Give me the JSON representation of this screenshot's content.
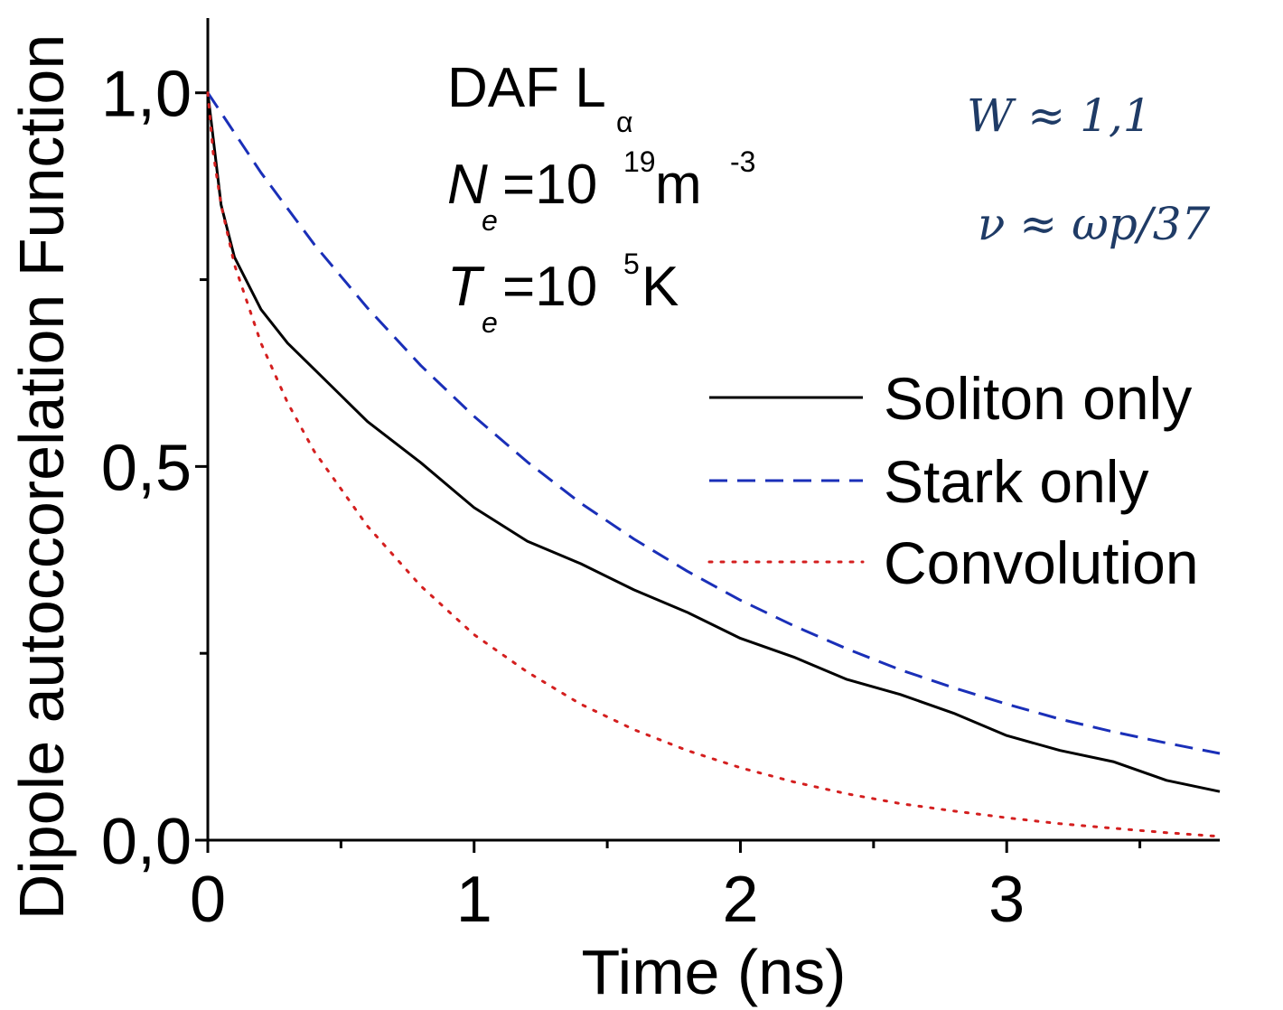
{
  "chart_data": {
    "type": "line",
    "xlabel": "Time (ns)",
    "ylabel": "Dipole autoccorelation Function",
    "xlim": [
      0,
      3.8
    ],
    "ylim": [
      0,
      1.1
    ],
    "x_ticks": [
      "0",
      "1",
      "2",
      "3"
    ],
    "y_ticks": [
      "0,0",
      "0,5",
      "1,0"
    ],
    "legend_position": "right",
    "annotations": {
      "line1": {
        "main": "DAF L",
        "sub": "α"
      },
      "line2": {
        "var": "N",
        "sub": "e",
        "eq": "=10",
        "sup": "19",
        "unit": " m",
        "unit_sup": "-3"
      },
      "line3": {
        "var": "T",
        "sub": "e",
        "eq": "=10",
        "sup": "5",
        "unit": " K"
      },
      "param_w": "W ≈ 1,1",
      "param_nu": "ν ≈ ωp/37"
    },
    "series": [
      {
        "name": "Soliton only",
        "color": "#000000",
        "style": "solid",
        "x": [
          0,
          0.05,
          0.1,
          0.2,
          0.3,
          0.4,
          0.6,
          0.8,
          1.0,
          1.2,
          1.4,
          1.6,
          1.8,
          2.0,
          2.2,
          2.4,
          2.6,
          2.8,
          3.0,
          3.2,
          3.4,
          3.6,
          3.8
        ],
        "y": [
          1.0,
          0.85,
          0.78,
          0.71,
          0.665,
          0.63,
          0.56,
          0.505,
          0.445,
          0.4,
          0.37,
          0.335,
          0.305,
          0.27,
          0.245,
          0.215,
          0.195,
          0.17,
          0.14,
          0.12,
          0.105,
          0.08,
          0.065
        ]
      },
      {
        "name": "Stark only",
        "color": "#1a2fb8",
        "style": "dashed",
        "x": [
          0,
          0.2,
          0.4,
          0.6,
          0.8,
          1.0,
          1.2,
          1.4,
          1.6,
          1.8,
          2.0,
          2.2,
          2.4,
          2.6,
          2.8,
          3.0,
          3.2,
          3.4,
          3.6,
          3.8
        ],
        "y": [
          1.0,
          0.893,
          0.797,
          0.712,
          0.635,
          0.567,
          0.506,
          0.451,
          0.403,
          0.36,
          0.321,
          0.287,
          0.256,
          0.228,
          0.204,
          0.182,
          0.162,
          0.145,
          0.13,
          0.116
        ]
      },
      {
        "name": "Convolution",
        "color": "#d41f1f",
        "style": "dotted",
        "x": [
          0,
          0.02,
          0.05,
          0.1,
          0.2,
          0.3,
          0.4,
          0.6,
          0.8,
          1.0,
          1.2,
          1.4,
          1.6,
          1.8,
          2.0,
          2.2,
          2.4,
          2.6,
          2.8,
          3.0,
          3.2,
          3.4,
          3.6,
          3.8
        ],
        "y": [
          1.0,
          0.92,
          0.85,
          0.77,
          0.665,
          0.585,
          0.52,
          0.42,
          0.34,
          0.275,
          0.225,
          0.182,
          0.148,
          0.12,
          0.097,
          0.078,
          0.062,
          0.049,
          0.039,
          0.03,
          0.022,
          0.016,
          0.01,
          0.005
        ]
      }
    ]
  }
}
